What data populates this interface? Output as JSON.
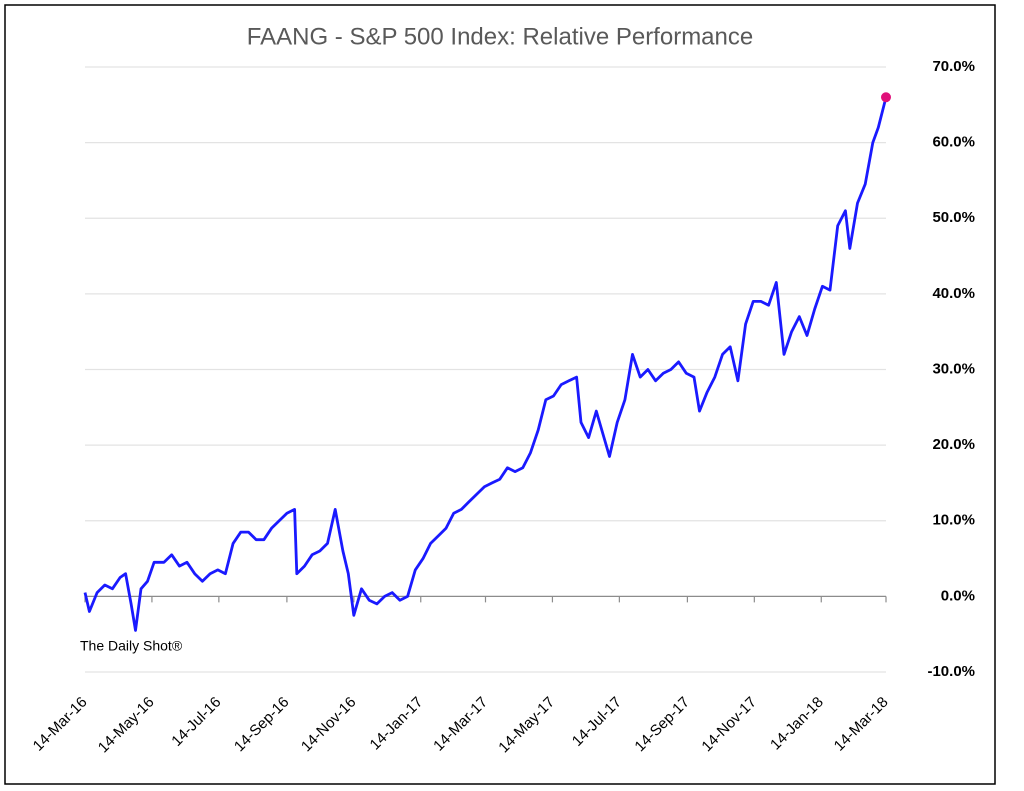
{
  "chart_data": {
    "type": "line",
    "title": "FAANG - S&P 500 Index:   Relative Performance",
    "annotation": "The Daily Shot®",
    "x": [
      "2016-03-14",
      "2016-03-18",
      "2016-03-25",
      "2016-04-01",
      "2016-04-08",
      "2016-04-15",
      "2016-04-20",
      "2016-04-25",
      "2016-04-29",
      "2016-05-04",
      "2016-05-10",
      "2016-05-16",
      "2016-05-25",
      "2016-06-01",
      "2016-06-08",
      "2016-06-15",
      "2016-06-22",
      "2016-06-29",
      "2016-07-06",
      "2016-07-13",
      "2016-07-20",
      "2016-07-27",
      "2016-08-03",
      "2016-08-10",
      "2016-08-17",
      "2016-08-24",
      "2016-08-31",
      "2016-09-07",
      "2016-09-14",
      "2016-09-21",
      "2016-09-23",
      "2016-09-30",
      "2016-10-07",
      "2016-10-14",
      "2016-10-21",
      "2016-10-28",
      "2016-11-04",
      "2016-11-09",
      "2016-11-14",
      "2016-11-21",
      "2016-11-28",
      "2016-12-05",
      "2016-12-12",
      "2016-12-19",
      "2016-12-26",
      "2017-01-02",
      "2017-01-09",
      "2017-01-16",
      "2017-01-23",
      "2017-01-30",
      "2017-02-06",
      "2017-02-13",
      "2017-02-20",
      "2017-02-27",
      "2017-03-06",
      "2017-03-13",
      "2017-03-20",
      "2017-03-27",
      "2017-04-03",
      "2017-04-10",
      "2017-04-17",
      "2017-04-24",
      "2017-05-01",
      "2017-05-08",
      "2017-05-15",
      "2017-05-22",
      "2017-05-29",
      "2017-06-05",
      "2017-06-09",
      "2017-06-16",
      "2017-06-23",
      "2017-06-30",
      "2017-07-05",
      "2017-07-12",
      "2017-07-19",
      "2017-07-26",
      "2017-08-02",
      "2017-08-09",
      "2017-08-16",
      "2017-08-23",
      "2017-08-30",
      "2017-09-06",
      "2017-09-13",
      "2017-09-20",
      "2017-09-25",
      "2017-10-02",
      "2017-10-09",
      "2017-10-16",
      "2017-10-23",
      "2017-10-30",
      "2017-11-06",
      "2017-11-13",
      "2017-11-20",
      "2017-11-27",
      "2017-12-04",
      "2017-12-11",
      "2017-12-18",
      "2017-12-25",
      "2018-01-01",
      "2018-01-08",
      "2018-01-15",
      "2018-01-22",
      "2018-01-29",
      "2018-02-05",
      "2018-02-09",
      "2018-02-16",
      "2018-02-23",
      "2018-03-02",
      "2018-03-07",
      "2018-03-14"
    ],
    "series": [
      {
        "color": "#1a1aff",
        "values": [
          0.5,
          -2,
          0.5,
          1.5,
          1,
          2.5,
          3,
          -1,
          -4.5,
          1,
          2,
          4.5,
          4.5,
          5.5,
          4,
          4.5,
          3,
          2,
          3,
          3.5,
          3,
          7,
          8.5,
          8.5,
          7.5,
          7.5,
          9,
          10,
          11,
          11.5,
          3,
          4,
          5.5,
          6,
          7,
          11.5,
          6,
          3,
          -2.5,
          1,
          -0.5,
          -1,
          0,
          0.5,
          -0.5,
          0,
          3.5,
          5,
          7,
          8,
          9,
          11,
          11.5,
          12.5,
          13.5,
          14.5,
          15,
          15.5,
          17,
          16.5,
          17,
          19,
          22,
          26,
          26.5,
          28,
          28.5,
          29,
          23,
          21,
          24.5,
          21,
          18.5,
          23,
          26,
          32,
          29,
          30,
          28.5,
          29.5,
          30,
          31,
          29.5,
          29,
          24.5,
          27,
          29,
          32,
          33,
          28.5,
          36,
          39,
          39,
          38.5,
          41.5,
          32,
          35,
          37,
          34.5,
          38,
          41,
          40.5,
          49,
          51,
          46,
          52,
          54.5,
          60,
          62,
          66
        ]
      }
    ],
    "highlight_color": "#e0107a",
    "xlim": [
      "2016-03-14",
      "2018-03-14"
    ],
    "xticks": [
      {
        "value": "2016-03-14",
        "label": "14-Mar-16"
      },
      {
        "value": "2016-05-14",
        "label": "14-May-16"
      },
      {
        "value": "2016-07-14",
        "label": "14-Jul-16"
      },
      {
        "value": "2016-09-14",
        "label": "14-Sep-16"
      },
      {
        "value": "2016-11-14",
        "label": "14-Nov-16"
      },
      {
        "value": "2017-01-14",
        "label": "14-Jan-17"
      },
      {
        "value": "2017-03-14",
        "label": "14-Mar-17"
      },
      {
        "value": "2017-05-14",
        "label": "14-May-17"
      },
      {
        "value": "2017-07-14",
        "label": "14-Jul-17"
      },
      {
        "value": "2017-09-14",
        "label": "14-Sep-17"
      },
      {
        "value": "2017-11-14",
        "label": "14-Nov-17"
      },
      {
        "value": "2018-01-14",
        "label": "14-Jan-18"
      },
      {
        "value": "2018-03-14",
        "label": "14-Mar-18"
      }
    ],
    "ylim": [
      -10,
      70
    ],
    "yticks": [
      {
        "value": -10,
        "label": "-10.0%"
      },
      {
        "value": 0,
        "label": "0.0%"
      },
      {
        "value": 10,
        "label": "10.0%"
      },
      {
        "value": 20,
        "label": "20.0%"
      },
      {
        "value": 30,
        "label": "30.0%"
      },
      {
        "value": 40,
        "label": "40.0%"
      },
      {
        "value": 50,
        "label": "50.0%"
      },
      {
        "value": 60,
        "label": "60.0%"
      },
      {
        "value": 70,
        "label": "70.0%"
      }
    ],
    "grid": true
  }
}
